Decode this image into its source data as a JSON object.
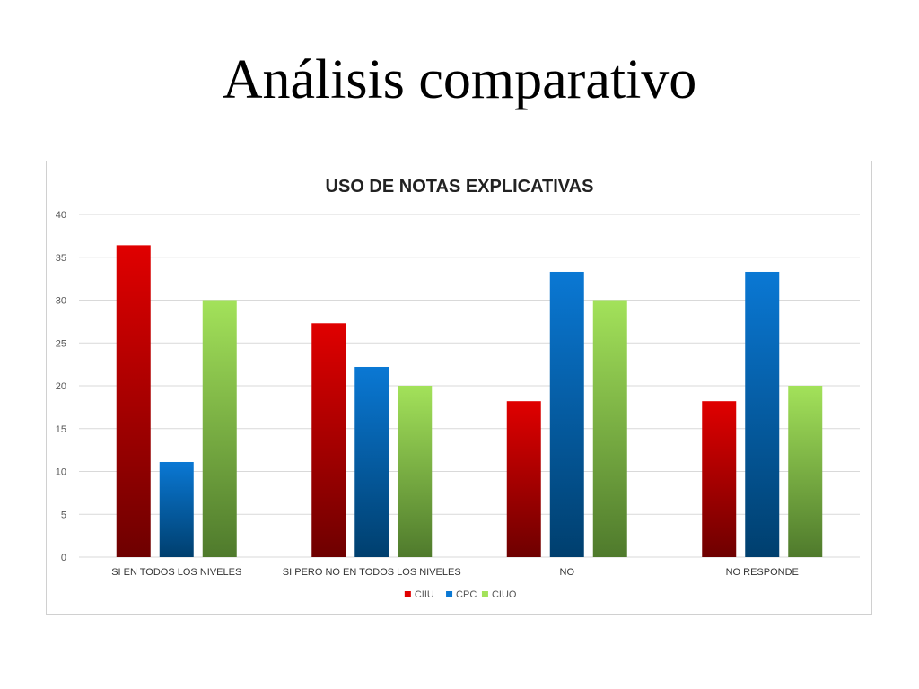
{
  "slide": {
    "title": "Análisis comparativo"
  },
  "chart_data": {
    "type": "bar",
    "title": "USO DE NOTAS EXPLICATIVAS",
    "xlabel": "",
    "ylabel": "",
    "ylim": [
      0,
      40
    ],
    "yticks": [
      0,
      5,
      10,
      15,
      20,
      25,
      30,
      35,
      40
    ],
    "grid": true,
    "legend_position": "bottom",
    "categories": [
      "SI EN TODOS LOS NIVELES",
      "SI PERO NO EN TODOS LOS NIVELES",
      "NO",
      "NO RESPONDE"
    ],
    "series": [
      {
        "name": "CIIU",
        "values": [
          36.4,
          27.3,
          18.2,
          18.2
        ],
        "color_top": "#e00000",
        "color_bottom": "#6e0000"
      },
      {
        "name": "CPC",
        "values": [
          11.1,
          22.2,
          33.3,
          33.3
        ],
        "color_top": "#0a78d4",
        "color_bottom": "#003f6e"
      },
      {
        "name": "CIUO",
        "values": [
          30,
          20,
          30,
          20
        ],
        "color_top": "#a3e25a",
        "color_bottom": "#4f7a2c"
      }
    ]
  }
}
